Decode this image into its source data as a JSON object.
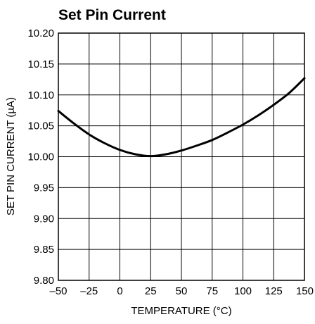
{
  "chart_data": {
    "type": "line",
    "title": "Set Pin Current",
    "xlabel": "TEMPERATURE (°C)",
    "ylabel": "SET PIN CURRENT (µA)",
    "xlim": [
      -50,
      150
    ],
    "ylim": [
      9.8,
      10.2
    ],
    "x_ticks": [
      "–50",
      "–25",
      "0",
      "25",
      "50",
      "75",
      "100",
      "125",
      "150"
    ],
    "y_ticks": [
      "10.20",
      "10.15",
      "10.10",
      "10.05",
      "10.00",
      "9.95",
      "9.90",
      "9.85",
      "9.80"
    ],
    "grid": true,
    "series": [
      {
        "x": [
          -50,
          -37.5,
          -25,
          -12.5,
          0,
          12.5,
          25,
          37.5,
          50,
          62.5,
          75,
          87.5,
          100,
          112.5,
          125,
          137.5,
          150
        ],
        "y": [
          10.074,
          10.054,
          10.036,
          10.022,
          10.011,
          10.004,
          10.001,
          10.004,
          10.01,
          10.018,
          10.027,
          10.039,
          10.052,
          10.067,
          10.084,
          10.103,
          10.127
        ]
      }
    ],
    "line_color": "#000000"
  }
}
